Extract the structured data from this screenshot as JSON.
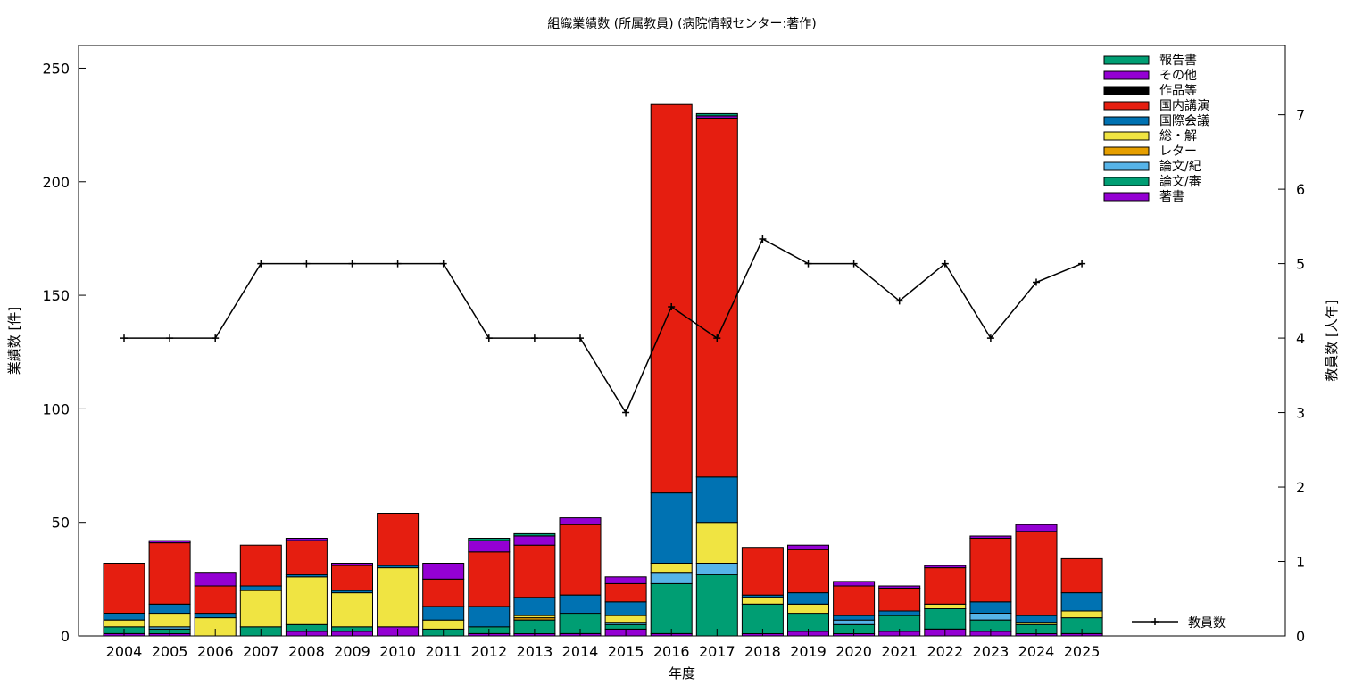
{
  "chart_data": {
    "type": "bar",
    "title": "組織業績数 (所属教員) (病院情報センター:著作)",
    "xlabel": "年度",
    "ylabel": "業績数 [件]",
    "y2label": "教員数 [人年]",
    "ylim": [
      0,
      260
    ],
    "y2lim": [
      0,
      7.93
    ],
    "yticks": [
      0,
      50,
      100,
      150,
      200,
      250
    ],
    "y2ticks": [
      0,
      1,
      2,
      3,
      4,
      5,
      6,
      7
    ],
    "grid": false,
    "legend_position": "top-right",
    "categories": [
      "2004",
      "2005",
      "2006",
      "2007",
      "2008",
      "2009",
      "2010",
      "2011",
      "2012",
      "2013",
      "2014",
      "2015",
      "2016",
      "2017",
      "2018",
      "2019",
      "2020",
      "2021",
      "2022",
      "2023",
      "2024",
      "2025"
    ],
    "series": [
      {
        "name": "著書",
        "color": "#9400d3",
        "values": [
          1,
          1,
          0,
          0,
          2,
          2,
          4,
          0,
          1,
          1,
          1,
          3,
          1,
          0,
          1,
          2,
          1,
          2,
          3,
          2,
          1,
          1
        ]
      },
      {
        "name": "論文/審",
        "color": "#009e73",
        "values": [
          3,
          2,
          0,
          4,
          3,
          2,
          0,
          3,
          3,
          6,
          9,
          2,
          22,
          27,
          13,
          8,
          4,
          7,
          9,
          5,
          4,
          7
        ]
      },
      {
        "name": "論文/紀",
        "color": "#56b4e9",
        "values": [
          0,
          1,
          0,
          0,
          0,
          0,
          0,
          0,
          0,
          0,
          0,
          1,
          5,
          5,
          0,
          0,
          2,
          0,
          0,
          3,
          0,
          0
        ]
      },
      {
        "name": "レター",
        "color": "#e69f00",
        "values": [
          0,
          0,
          0,
          0,
          0,
          0,
          0,
          0,
          0,
          1,
          0,
          0,
          0,
          0,
          0,
          0,
          0,
          0,
          0,
          0,
          0,
          0
        ]
      },
      {
        "name": "総・解",
        "color": "#f0e442",
        "values": [
          3,
          6,
          8,
          16,
          21,
          15,
          26,
          4,
          0,
          1,
          0,
          3,
          4,
          18,
          3,
          4,
          0,
          0,
          2,
          0,
          1,
          3
        ]
      },
      {
        "name": "国際会議",
        "color": "#0072b2",
        "values": [
          3,
          4,
          2,
          2,
          1,
          1,
          1,
          6,
          9,
          8,
          8,
          6,
          31,
          20,
          1,
          5,
          2,
          2,
          0,
          5,
          3,
          8
        ]
      },
      {
        "name": "国内講演",
        "color": "#e51e10",
        "values": [
          22,
          27,
          12,
          18,
          15,
          11,
          23,
          12,
          24,
          23,
          31,
          8,
          171,
          158,
          21,
          19,
          13,
          10,
          16,
          28,
          37,
          15
        ]
      },
      {
        "name": "作品等",
        "color": "#000000",
        "values": [
          0,
          0,
          0,
          0,
          0,
          0,
          0,
          0,
          0,
          0,
          0,
          0,
          0,
          0,
          0,
          0,
          0,
          0,
          0,
          0,
          0,
          0
        ]
      },
      {
        "name": "その他",
        "color": "#9400d3",
        "values": [
          0,
          1,
          6,
          0,
          1,
          1,
          0,
          7,
          5,
          4,
          3,
          3,
          0,
          1,
          0,
          2,
          2,
          1,
          1,
          1,
          3,
          0
        ]
      },
      {
        "name": "報告書",
        "color": "#009e73",
        "values": [
          0,
          0,
          0,
          0,
          0,
          0,
          0,
          0,
          1,
          1,
          0,
          0,
          0,
          1,
          0,
          0,
          0,
          0,
          0,
          0,
          0,
          0
        ]
      }
    ],
    "line": {
      "name": "教員数",
      "color": "#000000",
      "values": [
        4,
        4,
        4,
        5,
        5,
        5,
        5,
        5,
        4,
        4,
        4,
        3,
        4.42,
        4,
        5.33,
        5,
        5,
        4.5,
        5,
        4,
        4.75,
        5
      ]
    }
  }
}
